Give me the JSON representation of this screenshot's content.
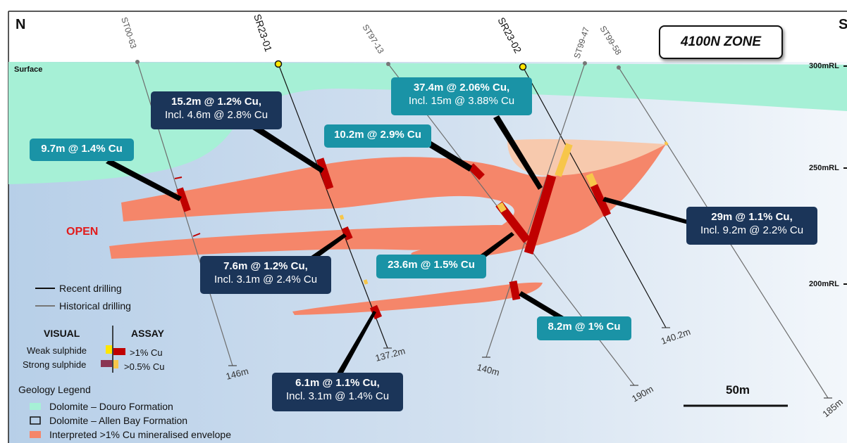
{
  "title": "4100N ZONE",
  "compass": {
    "left": "N",
    "right": "S"
  },
  "surface_label": "Surface",
  "open_label": "OPEN",
  "scale_bar": "50m",
  "rl_labels": [
    "300mRL",
    "250mRL",
    "200mRL"
  ],
  "holes": {
    "st00_63": {
      "name": "ST00-63",
      "depth": "146m"
    },
    "sr23_01": {
      "name": "SR23-01",
      "depth": "137.2m"
    },
    "st97_13": {
      "name": "ST97-13",
      "depth": "190m"
    },
    "sr23_02": {
      "name": "SR23-02",
      "depth": "140.2m"
    },
    "st99_47": {
      "name": "ST99-47",
      "depth": "140m"
    },
    "st99_58": {
      "name": "ST99-58",
      "depth": "185m"
    }
  },
  "intercepts": {
    "i1": {
      "line1": "15.2m @ 1.2% Cu,",
      "line2": "Incl. 4.6m @ 2.8% Cu"
    },
    "i2": {
      "line1": "9.7m @ 1.4% Cu"
    },
    "i3": {
      "line1": "10.2m @ 2.9% Cu"
    },
    "i4": {
      "line1": "37.4m @ 2.06% Cu,",
      "line2": "Incl. 15m @ 3.88% Cu"
    },
    "i5": {
      "line1": "29m @ 1.1% Cu,",
      "line2": "Incl. 9.2m @ 2.2% Cu"
    },
    "i6": {
      "line1": "7.6m @ 1.2% Cu,",
      "line2": "Incl. 3.1m @ 2.4% Cu"
    },
    "i7": {
      "line1": "23.6m @ 1.5% Cu"
    },
    "i8": {
      "line1": "8.2m @ 1% Cu"
    },
    "i9": {
      "line1": "6.1m @ 1.1% Cu,",
      "line2": "Incl. 3.1m @ 1.4% Cu"
    }
  },
  "legend": {
    "recent": "Recent drilling",
    "historical": "Historical drilling",
    "visual": "VISUAL",
    "assay": "ASSAY",
    "weak": "Weak sulphide",
    "strong": "Strong sulphide",
    "gt1": ">1% Cu",
    "gt05": ">0.5% Cu",
    "geology_title": "Geology Legend",
    "douro": "Dolomite – Douro Formation",
    "allen": "Dolomite – Allen Bay Formation",
    "envelope": "Interpreted >1% Cu mineralised envelope"
  },
  "colors": {
    "background": "#d6e4f2",
    "douro": "#a6f0d6",
    "envelope": "#f5866a",
    "navy_label": "#1b3559",
    "teal_label": "#1a93a6",
    "high_grade": "#c00000",
    "weak_sulphide": "#f7c64a",
    "strong_sulphide": "#8a3553",
    "open_text": "#e21b1b"
  }
}
